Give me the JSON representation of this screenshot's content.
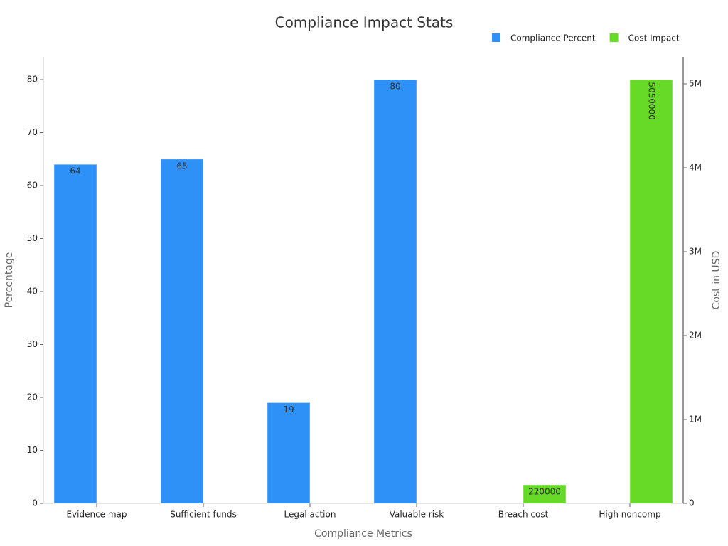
{
  "chart_data": {
    "type": "bar",
    "title": "Compliance Impact Stats",
    "x_label": "Compliance Metrics",
    "y_label": "Percentage",
    "y2_label": "Cost in USD",
    "categories": [
      "Evidence map",
      "Sufficient funds",
      "Legal action",
      "Valuable risk",
      "Breach cost",
      "High noncomp"
    ],
    "series": [
      {
        "name": "Compliance Percent",
        "color": "#2e91f7",
        "values": [
          64,
          65,
          19,
          80,
          null,
          null
        ]
      },
      {
        "name": "Cost Impact",
        "color": "#66da26",
        "axis": "y2",
        "values": [
          null,
          null,
          null,
          null,
          220000,
          5050000
        ]
      }
    ],
    "ylim": [
      0,
      84.3
    ],
    "yticks": [
      0,
      10,
      20,
      30,
      40,
      50,
      60,
      70,
      80
    ],
    "y2lim": [
      0,
      5322000
    ],
    "y2ticks": [
      0,
      {
        "value": 1000000,
        "label": "1M"
      },
      {
        "value": 2000000,
        "label": "2M"
      },
      {
        "value": 3000000,
        "label": "3M"
      },
      {
        "value": 4000000,
        "label": "4M"
      },
      {
        "value": 5000000,
        "label": "5M"
      }
    ],
    "legend": "top-right",
    "grid": false
  }
}
